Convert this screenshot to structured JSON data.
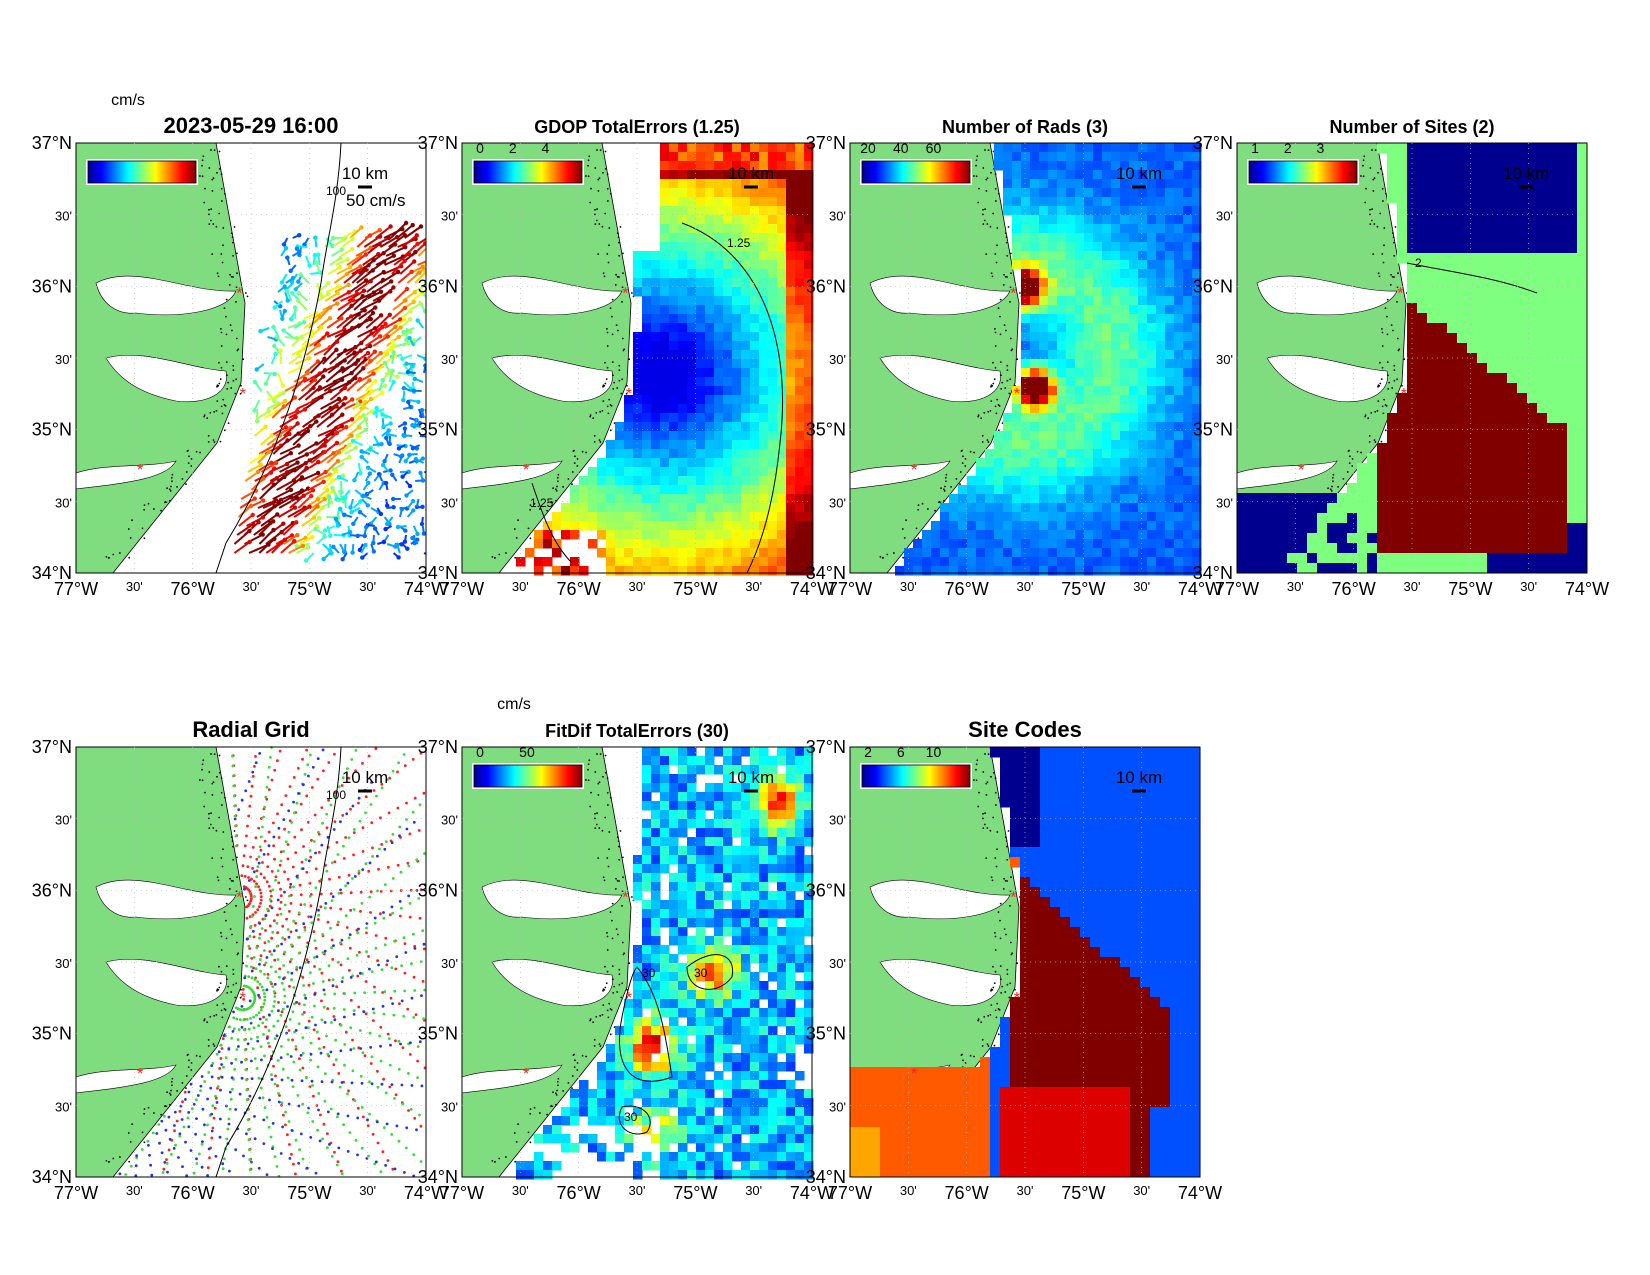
{
  "figure": {
    "timestamp": "2023-05-29 16:00",
    "scale_bar_label": "10 km",
    "axis": {
      "lat_labels": [
        "37°N",
        "30'",
        "36°N",
        "30'",
        "35°N",
        "30'",
        "34°N"
      ],
      "lon_labels": [
        "77°W",
        "30'",
        "76°W",
        "30'",
        "75°W",
        "30'",
        "74°W"
      ]
    },
    "panels": [
      {
        "id": "currents",
        "title": "2023-05-29 16:00",
        "colorbar_unit": "cm/s",
        "colorbar_ticks": [],
        "annotation": "50 cm/s",
        "contour_label": "100"
      },
      {
        "id": "gdop",
        "title": "GDOP TotalErrors (1.25)",
        "colorbar_unit": "",
        "colorbar_ticks": [
          "0",
          "2",
          "4"
        ],
        "contour_label": "1.25"
      },
      {
        "id": "nrads",
        "title": "Number of Rads (3)",
        "colorbar_unit": "",
        "colorbar_ticks": [
          "20",
          "40",
          "60"
        ]
      },
      {
        "id": "nsites",
        "title": "Number of Sites (2)",
        "colorbar_unit": "",
        "colorbar_ticks": [
          "1",
          "2",
          "3"
        ],
        "contour_label": "2"
      },
      {
        "id": "radialgrid",
        "title": "Radial Grid",
        "contour_label": "100"
      },
      {
        "id": "fitdif",
        "title": "FitDif TotalErrors (30)",
        "colorbar_unit": "cm/s",
        "colorbar_ticks": [
          "0",
          "50"
        ],
        "contour_label": "30"
      },
      {
        "id": "sitecodes",
        "title": "Site Codes",
        "colorbar_unit": "",
        "colorbar_ticks": [
          "2",
          "6",
          "10"
        ]
      }
    ],
    "colors": {
      "land": "#7fdd7f",
      "site_marker": "#ff2020",
      "grid_red": "#ff2020",
      "grid_green": "#33dd33",
      "grid_blue": "#2233ee"
    }
  }
}
